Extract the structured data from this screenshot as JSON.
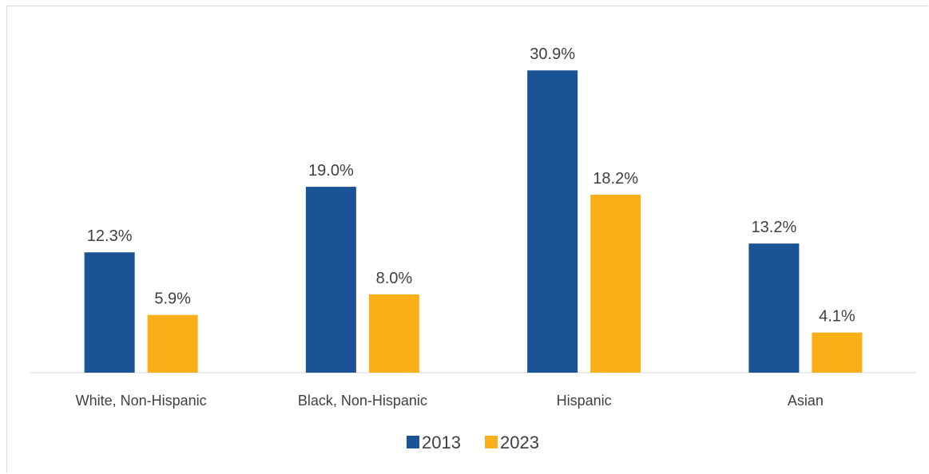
{
  "chart_data": {
    "type": "bar",
    "categories": [
      "White, Non-Hispanic",
      "Black, Non-Hispanic",
      "Hispanic",
      "Asian"
    ],
    "series": [
      {
        "name": "2013",
        "values": [
          12.3,
          19.0,
          30.9,
          13.2
        ],
        "labels": [
          "12.3%",
          "19.0%",
          "30.9%",
          "13.2%"
        ],
        "color": "#1A5496"
      },
      {
        "name": "2023",
        "values": [
          5.9,
          8.0,
          18.2,
          4.1
        ],
        "labels": [
          "5.9%",
          "8.0%",
          "18.2%",
          "4.1%"
        ],
        "color": "#FAAF19"
      }
    ],
    "ylim": [
      0,
      31
    ],
    "grid": false,
    "legend_position": "bottom",
    "axis_color": "#d9d9d9"
  }
}
